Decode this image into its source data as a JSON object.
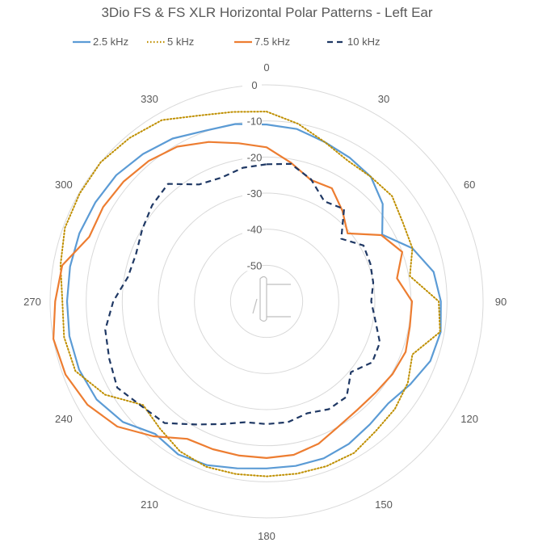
{
  "chart_data": {
    "type": "polar-line",
    "title": "3Dio FS & FS XLR Horizontal Polar Patterns - Left Ear",
    "angle_labels": [
      "0",
      "30",
      "60",
      "90",
      "120",
      "150",
      "180",
      "210",
      "240",
      "270",
      "300",
      "330"
    ],
    "angle_ticks": [
      0,
      30,
      60,
      90,
      120,
      150,
      180,
      210,
      240,
      270,
      300,
      330
    ],
    "radial_labels": [
      "0",
      "-10",
      "-20",
      "-30",
      "-40",
      "-50"
    ],
    "radial_ticks": [
      0,
      -10,
      -20,
      -30,
      -40,
      -50
    ],
    "rlim": [
      -60,
      0
    ],
    "grid": true,
    "legend_position": "top",
    "angles": [
      0,
      10,
      20,
      30,
      40,
      50,
      60,
      70,
      80,
      90,
      100,
      110,
      120,
      130,
      140,
      150,
      160,
      170,
      180,
      190,
      200,
      210,
      220,
      230,
      240,
      250,
      260,
      270,
      280,
      290,
      300,
      310,
      320,
      330,
      340,
      350
    ],
    "series": [
      {
        "name": "2.5 kHz",
        "color": "#5B9BD5",
        "dash": "solid",
        "values": [
          -11,
          -11.5,
          -13,
          -14,
          -15,
          -18,
          -23,
          -17,
          -13,
          -11.7,
          -11,
          -11.7,
          -14,
          -16,
          -15.5,
          -14.4,
          -13.7,
          -13.7,
          -13.7,
          -13,
          -11.7,
          -11,
          -12,
          -8,
          -5.6,
          -4.7,
          -4.5,
          -4.7,
          -4.7,
          -4.8,
          -5.2,
          -5.6,
          -6.7,
          -7.9,
          -9.7,
          -10.1
        ]
      },
      {
        "name": "5 kHz",
        "color": "#BF8F00",
        "dash": "dotted",
        "values": [
          -7.4,
          -10,
          -13,
          -15,
          -15,
          -14.6,
          -16.4,
          -17,
          -19.7,
          -12.3,
          -11.2,
          -17,
          -14.8,
          -13.6,
          -13,
          -11.5,
          -11.4,
          -11.5,
          -11.5,
          -11.4,
          -11.2,
          -12,
          -14,
          -15.3,
          -8.3,
          -3.6,
          -3,
          -3.4,
          -2,
          -0.5,
          -0.2,
          0,
          -0.9,
          -2,
          -5.2,
          -6.7
        ]
      },
      {
        "name": "7.5 kHz",
        "color": "#ED7D31",
        "dash": "solid",
        "values": [
          -17.3,
          -21,
          -24.2,
          -23.8,
          -27.3,
          -30.7,
          -23.3,
          -20,
          -23.3,
          -19.7,
          -19.7,
          -19,
          -19.7,
          -20.6,
          -20.8,
          -20,
          -18,
          -16.8,
          -16.6,
          -16.6,
          -16.4,
          -16,
          -11.2,
          -6,
          -2.7,
          -0.7,
          0,
          -1.4,
          -2.5,
          -7.7,
          -7.7,
          -8.3,
          -9.2,
          -10.5,
          -13,
          -15.5
        ]
      },
      {
        "name": "10 kHz",
        "color": "#1F3864",
        "dash": "dashed",
        "values": [
          -22,
          -21.3,
          -24,
          -28,
          -26.6,
          -33,
          -29,
          -29.4,
          -30,
          -31,
          -29.4,
          -26.6,
          -26.2,
          -29.5,
          -25.5,
          -25.5,
          -27,
          -26,
          -26,
          -26,
          -23.8,
          -20.6,
          -16,
          -14.8,
          -12.2,
          -13.6,
          -14.6,
          -17.5,
          -21,
          -21.5,
          -20.2,
          -18.6,
          -17.5,
          -22.6,
          -23.5,
          -22.4
        ]
      }
    ]
  }
}
